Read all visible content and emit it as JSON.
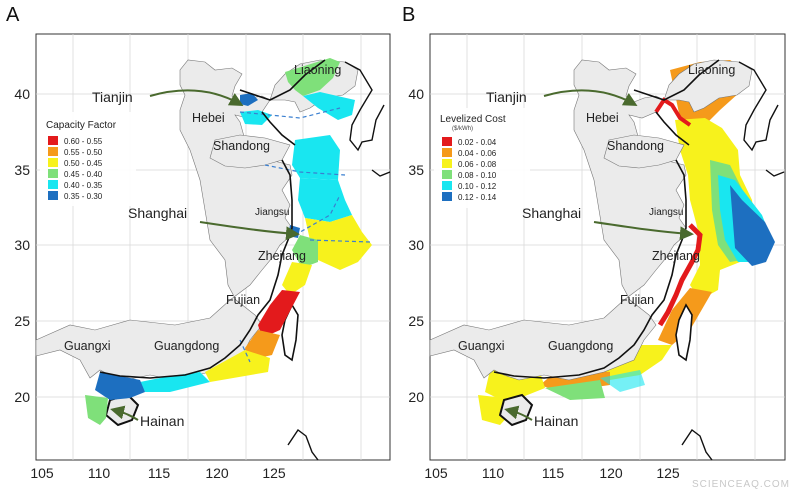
{
  "panels": [
    {
      "letter": "A",
      "legend_title": "Capacity Factor",
      "legend_subtitle": "",
      "legend": [
        {
          "label": "0.60 - 0.55",
          "color": "#e31a1c"
        },
        {
          "label": "0.55 - 0.50",
          "color": "#f59a1b"
        },
        {
          "label": "0.50 - 0.45",
          "color": "#f7f21c"
        },
        {
          "label": "0.45 - 0.40",
          "color": "#7fe07a"
        },
        {
          "label": "0.40 - 0.35",
          "color": "#19e6f0"
        },
        {
          "label": "0.35 - 0.30",
          "color": "#1d6fc0"
        }
      ]
    },
    {
      "letter": "B",
      "legend_title": "Levelized Cost",
      "legend_subtitle": "($/kWh)",
      "legend": [
        {
          "label": "0.02 - 0.04",
          "color": "#e31a1c"
        },
        {
          "label": "0.04 - 0.06",
          "color": "#f59a1b"
        },
        {
          "label": "0.06 - 0.08",
          "color": "#f7f21c"
        },
        {
          "label": "0.08 - 0.10",
          "color": "#7fe07a"
        },
        {
          "label": "0.10 - 0.12",
          "color": "#19e6f0"
        },
        {
          "label": "0.12 - 0.14",
          "color": "#1d6fc0"
        }
      ]
    }
  ],
  "x_ticks": [
    "105",
    "110",
    "115",
    "120",
    "125"
  ],
  "y_ticks": [
    "40",
    "35",
    "30",
    "25",
    "20"
  ],
  "provinces": [
    "Liaoning",
    "Hebei",
    "Shandong",
    "Jiangsu",
    "Zhejiang",
    "Fujian",
    "Guangxi",
    "Guangdong"
  ],
  "cities": [
    "Tianjin",
    "Shanghai",
    "Hainan"
  ],
  "watermark": "SCIENCEAQ.COM",
  "colors": {
    "land": "#ebebeb",
    "border": "#111111",
    "grid": "#d9d9d9",
    "arrow": "#4a6a2e"
  }
}
